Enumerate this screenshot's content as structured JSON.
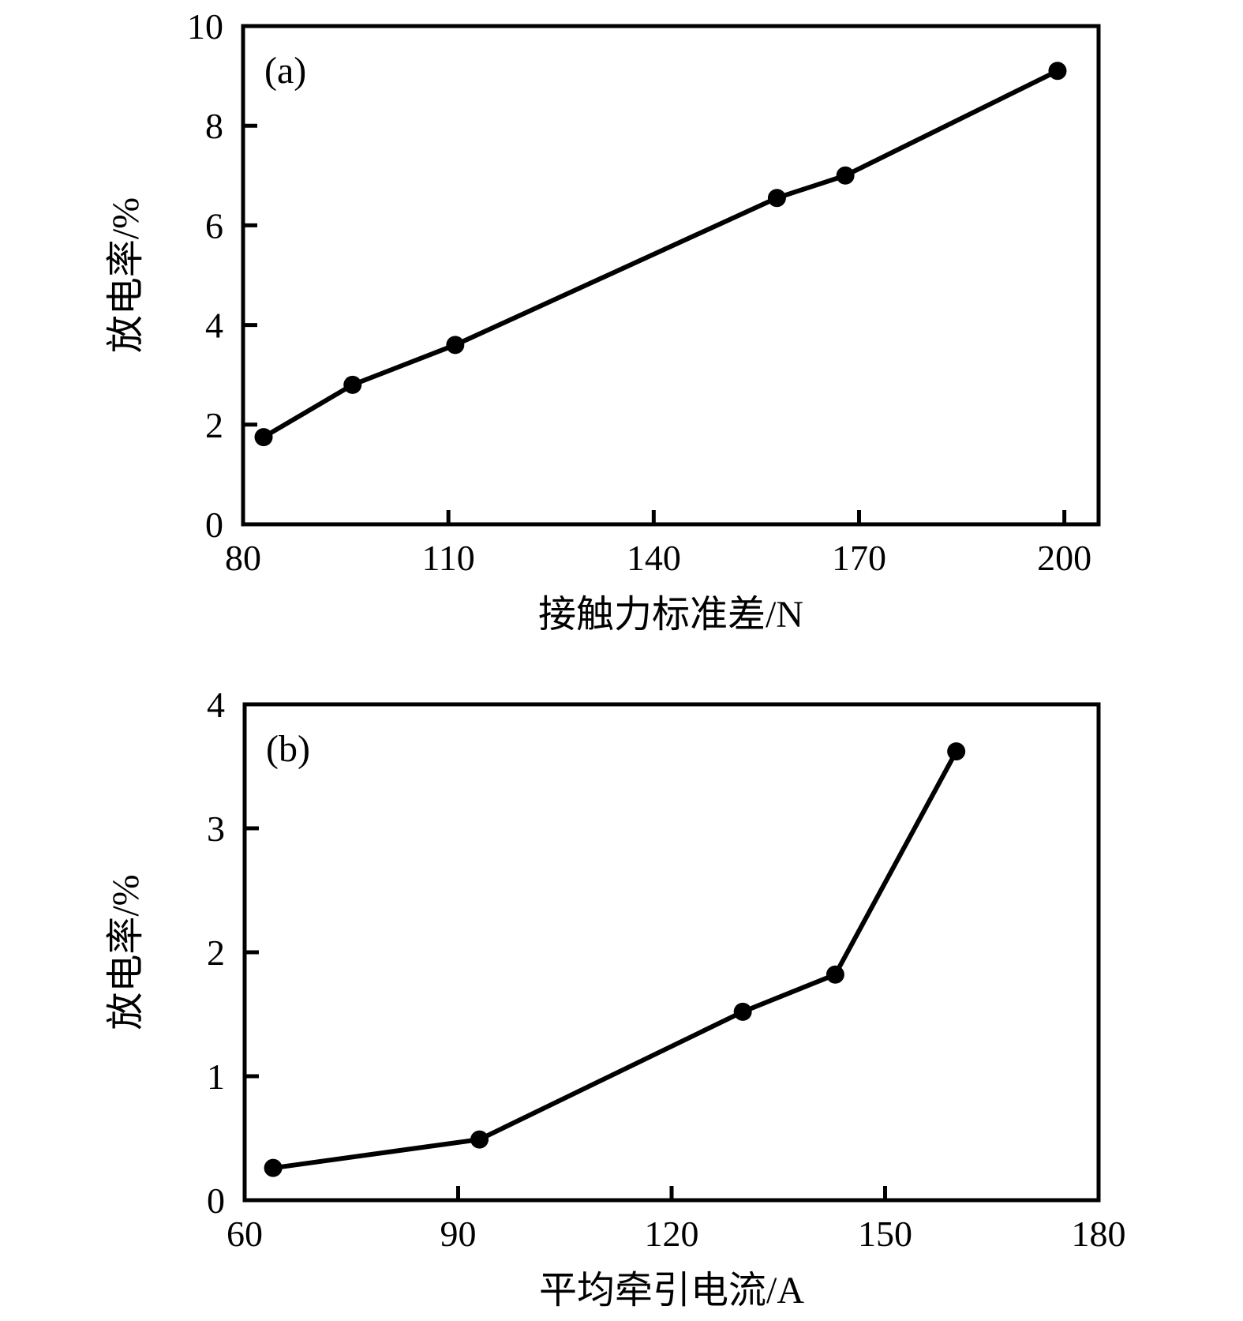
{
  "figure": {
    "background": "#ffffff",
    "ink_color": "#000000"
  },
  "chart_data": [
    {
      "type": "line",
      "panel_label": "(a)",
      "xlabel": "接触力标准差/N",
      "ylabel": "放电率/%",
      "xlim": [
        80,
        205
      ],
      "ylim": [
        0,
        10
      ],
      "xticks": [
        80,
        110,
        140,
        170,
        200
      ],
      "yticks": [
        0,
        2,
        4,
        6,
        8,
        10
      ],
      "x": [
        83,
        96,
        111,
        158,
        168,
        199
      ],
      "y": [
        1.75,
        2.8,
        3.6,
        6.55,
        7.0,
        9.1
      ],
      "marker": "filled-circle",
      "line_color": "#000000",
      "grid": false,
      "legend": "none"
    },
    {
      "type": "line",
      "panel_label": "(b)",
      "xlabel": "平均牵引电流/A",
      "ylabel": "放电率/%",
      "xlim": [
        60,
        180
      ],
      "ylim": [
        0,
        4
      ],
      "xticks": [
        60,
        90,
        120,
        150,
        180
      ],
      "yticks": [
        0,
        1,
        2,
        3,
        4
      ],
      "x": [
        64,
        93,
        130,
        143,
        160
      ],
      "y": [
        0.26,
        0.49,
        1.52,
        1.82,
        3.62
      ],
      "marker": "filled-circle",
      "line_color": "#000000",
      "grid": false,
      "legend": "none"
    }
  ]
}
